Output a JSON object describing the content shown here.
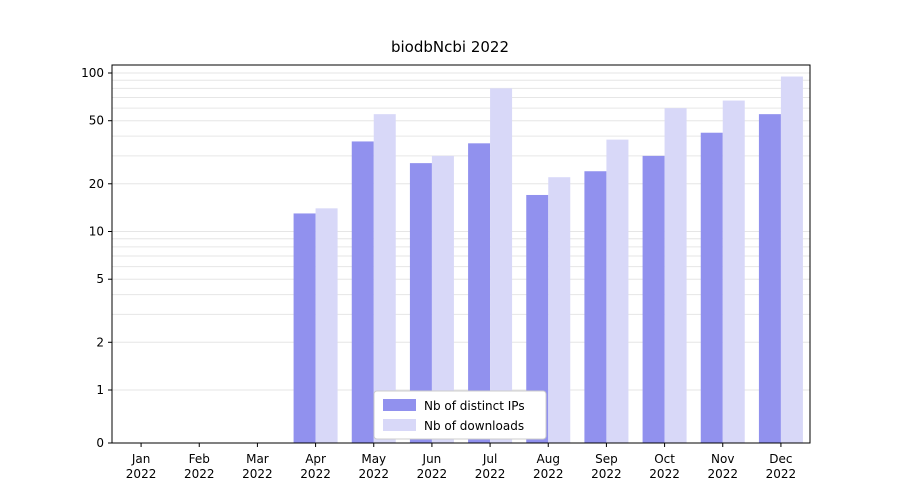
{
  "chart_data": {
    "type": "bar",
    "title": "biodbNcbi 2022",
    "categories": [
      "Jan",
      "Feb",
      "Mar",
      "Apr",
      "May",
      "Jun",
      "Jul",
      "Aug",
      "Sep",
      "Oct",
      "Nov",
      "Dec"
    ],
    "category_year": "2022",
    "series": [
      {
        "name": "Nb of distinct IPs",
        "color": "#9191ee",
        "values": [
          0,
          0,
          0,
          13,
          37,
          27,
          36,
          17,
          24,
          30,
          42,
          55
        ]
      },
      {
        "name": "Nb of downloads",
        "color": "#d8d8f8",
        "values": [
          0,
          0,
          0,
          14,
          55,
          30,
          80,
          22,
          38,
          60,
          67,
          95
        ]
      }
    ],
    "yscale": "symlog",
    "yticks": [
      100,
      50,
      20,
      10,
      5,
      2,
      1,
      0
    ],
    "ylim": [
      0,
      110
    ],
    "grid": "horizontal-log-minor",
    "gridline_values": [
      1,
      2,
      3,
      4,
      5,
      6,
      7,
      8,
      9,
      10,
      20,
      30,
      40,
      50,
      60,
      70,
      80,
      90,
      100
    ],
    "legend_position": "lower-center",
    "xlabel": "",
    "ylabel": ""
  },
  "colors": {
    "grid": "#e6e6e6",
    "axis": "#000000",
    "background": "#ffffff",
    "legend_border": "#cccccc",
    "legend_background": "#ffffff"
  }
}
